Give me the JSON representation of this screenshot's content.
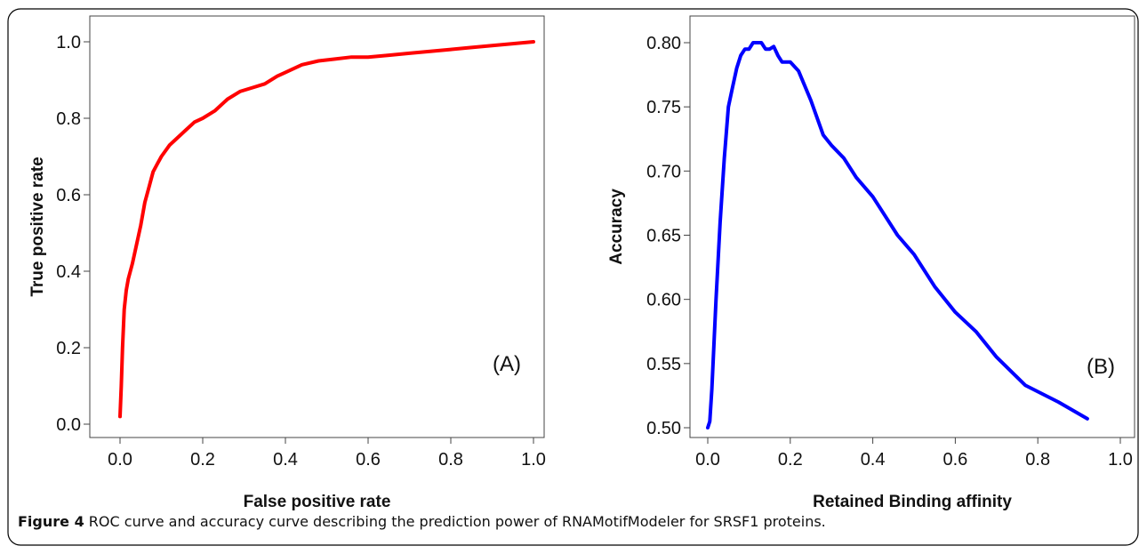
{
  "figure": {
    "caption_label": "Figure 4",
    "caption_text": "ROC curve and accuracy curve describing the prediction power of RNAMotifModeler for SRSF1 proteins",
    "caption_end": "."
  },
  "chart_data": [
    {
      "type": "line",
      "title": "",
      "xlabel": "False positive rate",
      "ylabel": "True positive rate",
      "panel_label": "(A)",
      "xlim": [
        0.0,
        1.0
      ],
      "ylim": [
        0.0,
        1.0
      ],
      "xticks": [
        "0.0",
        "0.2",
        "0.4",
        "0.6",
        "0.8",
        "1.0"
      ],
      "yticks": [
        "0.0",
        "0.2",
        "0.4",
        "0.6",
        "0.8",
        "1.0"
      ],
      "grid": false,
      "color": "#ff0000",
      "series": [
        {
          "x": [
            0.0,
            0.003,
            0.006,
            0.01,
            0.015,
            0.02,
            0.03,
            0.04,
            0.05,
            0.06,
            0.07,
            0.08,
            0.09,
            0.1,
            0.12,
            0.14,
            0.16,
            0.18,
            0.2,
            0.23,
            0.26,
            0.29,
            0.32,
            0.35,
            0.38,
            0.4,
            0.44,
            0.48,
            0.52,
            0.56,
            0.6,
            0.65,
            0.7,
            0.75,
            0.8,
            0.85,
            0.9,
            0.95,
            1.0
          ],
          "y": [
            0.02,
            0.1,
            0.2,
            0.3,
            0.35,
            0.38,
            0.42,
            0.47,
            0.52,
            0.58,
            0.62,
            0.66,
            0.68,
            0.7,
            0.73,
            0.75,
            0.77,
            0.79,
            0.8,
            0.82,
            0.85,
            0.87,
            0.88,
            0.89,
            0.91,
            0.92,
            0.94,
            0.95,
            0.955,
            0.96,
            0.96,
            0.965,
            0.97,
            0.975,
            0.98,
            0.985,
            0.99,
            0.995,
            1.0
          ]
        }
      ]
    },
    {
      "type": "line",
      "title": "",
      "xlabel": "Retained Binding affinity",
      "ylabel": "Accuracy",
      "panel_label": "(B)",
      "xlim": [
        0.0,
        1.0
      ],
      "ylim": [
        0.5,
        0.8
      ],
      "xticks": [
        "0.0",
        "0.2",
        "0.4",
        "0.6",
        "0.8",
        "1.0"
      ],
      "yticks": [
        "0.50",
        "0.55",
        "0.60",
        "0.65",
        "0.70",
        "0.75",
        "0.80"
      ],
      "grid": false,
      "color": "#0000ff",
      "series": [
        {
          "x": [
            0.0,
            0.005,
            0.01,
            0.02,
            0.03,
            0.04,
            0.05,
            0.06,
            0.07,
            0.08,
            0.09,
            0.1,
            0.11,
            0.12,
            0.13,
            0.14,
            0.15,
            0.16,
            0.17,
            0.18,
            0.2,
            0.22,
            0.25,
            0.28,
            0.3,
            0.33,
            0.36,
            0.4,
            0.43,
            0.46,
            0.5,
            0.55,
            0.6,
            0.65,
            0.7,
            0.77,
            0.85,
            0.92
          ],
          "y": [
            0.5,
            0.505,
            0.53,
            0.6,
            0.66,
            0.71,
            0.75,
            0.765,
            0.78,
            0.79,
            0.795,
            0.795,
            0.8,
            0.8,
            0.8,
            0.795,
            0.795,
            0.797,
            0.79,
            0.785,
            0.785,
            0.778,
            0.755,
            0.728,
            0.72,
            0.71,
            0.695,
            0.68,
            0.665,
            0.65,
            0.635,
            0.61,
            0.59,
            0.575,
            0.555,
            0.533,
            0.52,
            0.507
          ]
        }
      ]
    }
  ]
}
